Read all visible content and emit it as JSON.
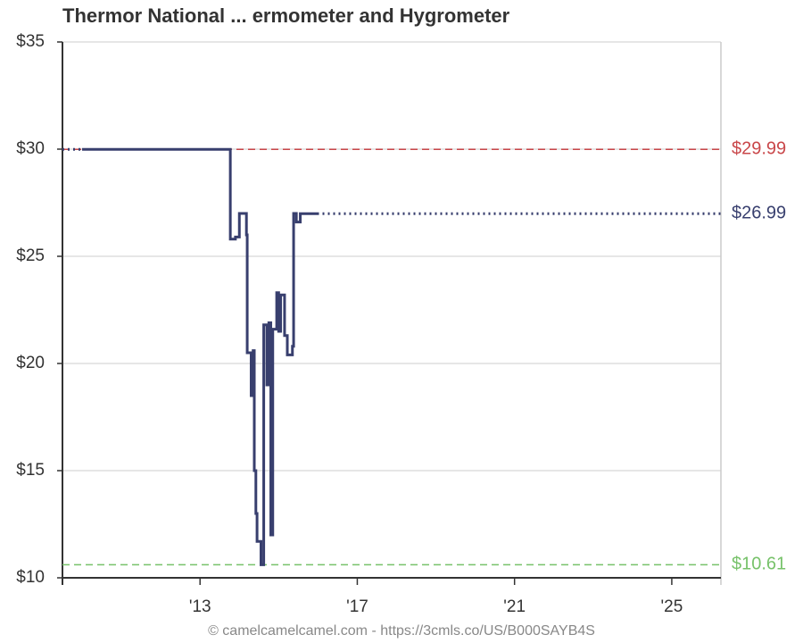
{
  "chart_data": {
    "type": "line",
    "title": "Thermor National ... ermometer and Hygrometer",
    "footer": "© camelcamelcamel.com - https://3cmls.co/US/B000SAYB4S",
    "step": true,
    "grid": true,
    "xlim": [
      2009.5,
      2026.25
    ],
    "xticks": [
      {
        "value": 2013,
        "label": "'13"
      },
      {
        "value": 2017,
        "label": "'17"
      },
      {
        "value": 2021,
        "label": "'21"
      },
      {
        "value": 2025,
        "label": "'25"
      }
    ],
    "ylim": [
      10,
      35
    ],
    "yticks": [
      {
        "value": 10,
        "label": "$10"
      },
      {
        "value": 15,
        "label": "$15"
      },
      {
        "value": 20,
        "label": "$20"
      },
      {
        "value": 25,
        "label": "$25"
      },
      {
        "value": 30,
        "label": "$30"
      },
      {
        "value": 35,
        "label": "$35"
      }
    ],
    "series": [
      {
        "color": "#383f6e",
        "line_style": "dotted",
        "x": [
          2009.5,
          2010.0
        ],
        "values": [
          29.99,
          29.99
        ]
      },
      {
        "color": "#383f6e",
        "line_style": "solid",
        "x": [
          2010.0,
          2013.77,
          2013.9,
          2014.0,
          2014.18,
          2014.2,
          2014.3,
          2014.35,
          2014.38,
          2014.42,
          2014.45,
          2014.55,
          2014.62,
          2014.7,
          2014.75,
          2014.8,
          2014.85,
          2014.95,
          2015.0,
          2015.05,
          2015.15,
          2015.22,
          2015.35,
          2015.38,
          2015.45,
          2015.55,
          2015.98
        ],
        "values": [
          29.99,
          25.8,
          25.9,
          27.0,
          26.0,
          20.5,
          18.5,
          20.6,
          15.0,
          13.0,
          11.7,
          10.61,
          21.8,
          19.0,
          21.9,
          12.0,
          21.6,
          23.3,
          21.5,
          23.2,
          21.3,
          20.4,
          20.8,
          27.0,
          26.6,
          26.99,
          26.99
        ]
      },
      {
        "color": "#383f6e",
        "line_style": "dotted",
        "x": [
          2015.98,
          2026.25
        ],
        "values": [
          26.99,
          26.99
        ]
      }
    ],
    "reference_lines": [
      {
        "value": 29.99,
        "label": "$29.99",
        "color": "#c9474a"
      },
      {
        "value": 26.99,
        "label": "$26.99",
        "color": "#383f6e",
        "line": false
      },
      {
        "value": 10.61,
        "label": "$10.61",
        "color": "#77c26a"
      }
    ]
  }
}
